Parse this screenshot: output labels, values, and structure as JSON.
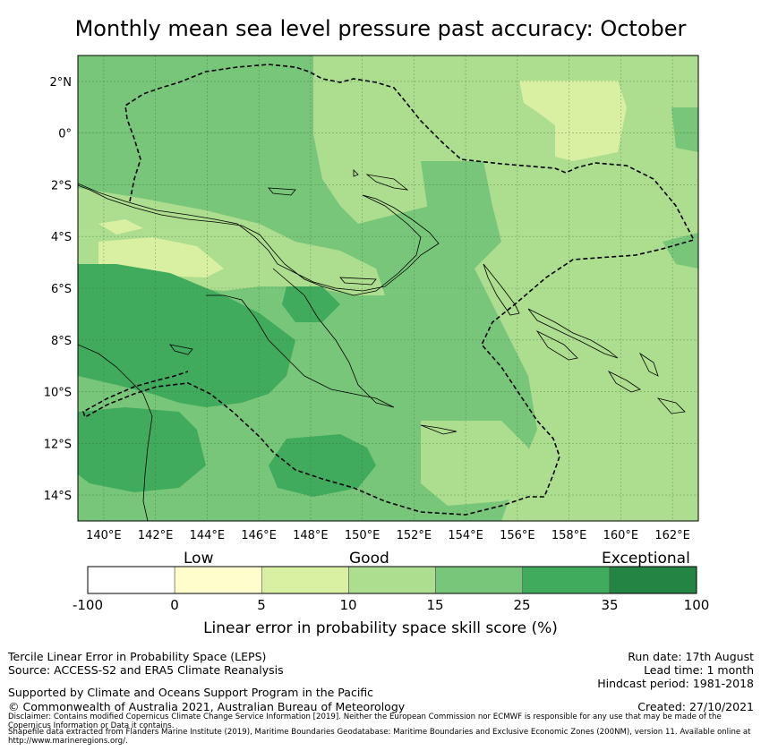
{
  "title": "Monthly mean sea level pressure past accuracy: October",
  "map": {
    "lon_labels": [
      "140°E",
      "142°E",
      "144°E",
      "146°E",
      "148°E",
      "150°E",
      "152°E",
      "154°E",
      "156°E",
      "158°E",
      "160°E",
      "162°E"
    ],
    "lat_labels": [
      "2°N",
      "0°",
      "2°S",
      "4°S",
      "6°S",
      "8°S",
      "10°S",
      "12°S",
      "14°S"
    ],
    "lon_range": [
      139,
      163
    ],
    "lat_range": [
      -15,
      3
    ],
    "grid": true
  },
  "colorbar": {
    "category_words": [
      "Low",
      "Good",
      "Exceptional"
    ],
    "ticks": [
      "-100",
      "0",
      "5",
      "10",
      "15",
      "25",
      "35",
      "100"
    ],
    "bins": [
      {
        "range": [
          -100,
          0
        ],
        "color": "#ffffff"
      },
      {
        "range": [
          0,
          5
        ],
        "color": "#fffdcc"
      },
      {
        "range": [
          5,
          10
        ],
        "color": "#d9f0a3"
      },
      {
        "range": [
          10,
          15
        ],
        "color": "#addd8e"
      },
      {
        "range": [
          15,
          25
        ],
        "color": "#78c679"
      },
      {
        "range": [
          25,
          35
        ],
        "color": "#41ab5d"
      },
      {
        "range": [
          35,
          100
        ],
        "color": "#238443"
      }
    ],
    "label": "Linear error in probability space skill score (%)"
  },
  "footer": {
    "left_line1": "Tercile Linear Error in Probability Space (LEPS)",
    "left_line2": "Source: ACCESS-S2 and ERA5 Climate Reanalysis",
    "support": "Supported by Climate and Oceans Support Program in the Pacific",
    "copyright": "© Commonwealth of Australia 2021, Australian Bureau of Meteorology",
    "run_date": "Run date: 17th August",
    "lead_time": "Lead time: 1 month",
    "hindcast": "Hindcast period: 1981-2018",
    "created": "Created: 27/10/2021",
    "disclaimer": "Disclaimer: Contains modified Copernicus Climate Change Service Information [2019]. Neither the European Commission nor ECMWF is responsible for any use that may be made of the Copernicus Information or Data it contains.",
    "shapefile": "Shapefile data extracted from Flanders Marine Institute (2019), Maritime Boundaries Geodatabase: Maritime Boundaries and Exclusive Economic Zones (200NM), version 11. Available online at http://www.marineregions.org/."
  }
}
